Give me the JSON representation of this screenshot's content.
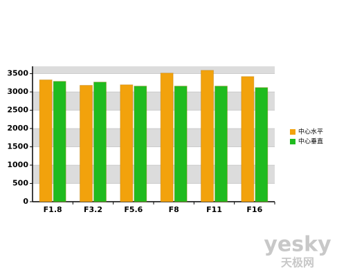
{
  "chart_data": {
    "type": "bar",
    "categories": [
      "F1.8",
      "F3.2",
      "F5.6",
      "F8",
      "F11",
      "F16"
    ],
    "series": [
      {
        "name": "中心水平",
        "color": "#f2a20c",
        "values": [
          3330,
          3180,
          3195,
          3515,
          3590,
          3420
        ]
      },
      {
        "name": "中心垂直",
        "color": "#1fbb1f",
        "values": [
          3290,
          3270,
          3160,
          3160,
          3160,
          3120
        ]
      }
    ],
    "ylim": [
      0,
      3700
    ],
    "yticks": [
      0,
      500,
      1000,
      1500,
      2000,
      2500,
      3000,
      3500
    ],
    "grid": true,
    "legend": "right",
    "watermark": {
      "brand": "yesky",
      "site": "天极网"
    }
  }
}
